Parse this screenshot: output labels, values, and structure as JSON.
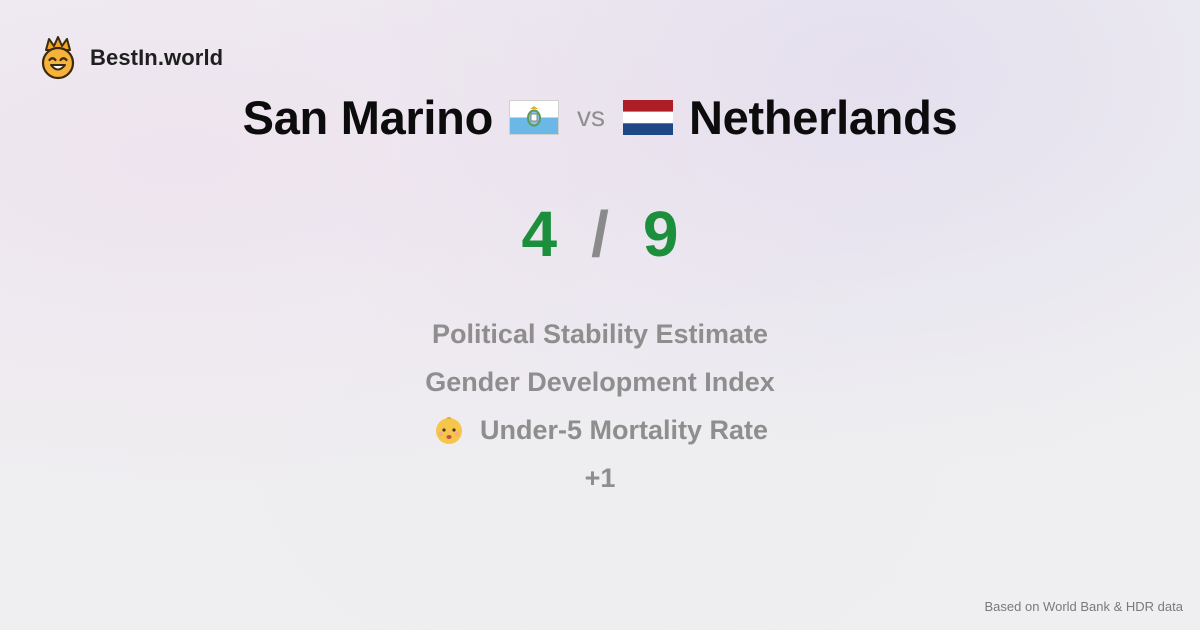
{
  "brand": {
    "name": "BestIn.world",
    "logo_icon": "crowned-smiley-icon"
  },
  "comparison": {
    "left": {
      "name": "San Marino",
      "flag_icon": "san-marino-flag-icon",
      "flag_colors": [
        "#ffffff",
        "#6bb7e6"
      ]
    },
    "vs_label": "vs",
    "right": {
      "name": "Netherlands",
      "flag_icon": "netherlands-flag-icon",
      "flag_colors": [
        "#ad1d25",
        "#ffffff",
        "#1e4785"
      ]
    }
  },
  "score": {
    "left": "4",
    "separator": "/",
    "right": "9",
    "color": "#1c8f3c"
  },
  "metrics": {
    "items": [
      {
        "label": "Political Stability Estimate"
      },
      {
        "label": "Gender Development Index"
      },
      {
        "label": "Under-5 Mortality Rate",
        "icon": "baby-face-icon"
      }
    ],
    "more": "+1"
  },
  "footer": {
    "source_note": "Based on World Bank & HDR data"
  }
}
